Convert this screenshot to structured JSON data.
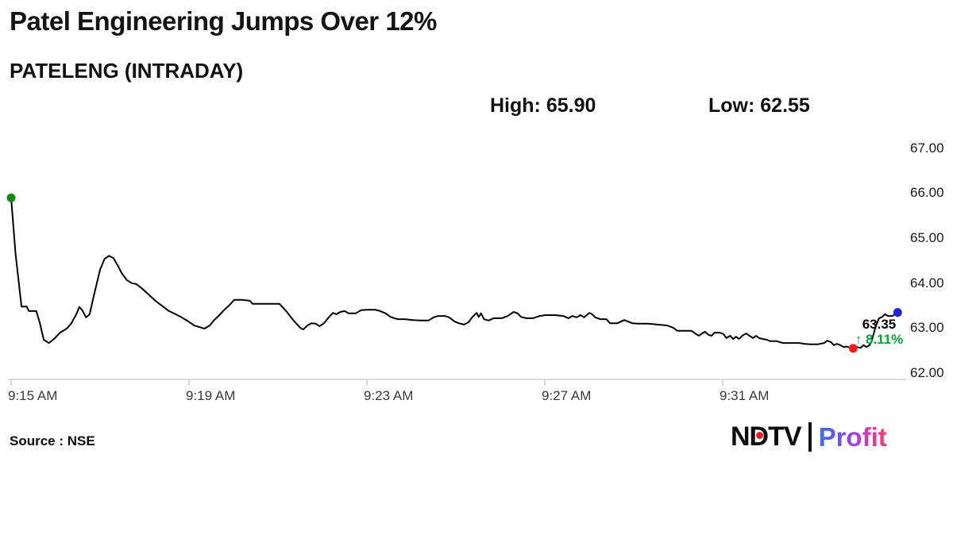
{
  "page": {
    "background": "#ffffff"
  },
  "header": {
    "title": "Patel Engineering Jumps Over 12%",
    "subtitle": "PATELENG (INTRADAY)",
    "high": "High: 65.90",
    "low": "Low: 62.55"
  },
  "footer": {
    "source": "Source : NSE",
    "logo_ndtv": "NDTV",
    "logo_profit": "Profit",
    "logo_dot_color": "#e31e24",
    "logo_bar_color": "#111111"
  },
  "chart_data": {
    "type": "line",
    "symbol": "PATELENG",
    "title": "PATELENG intraday price",
    "grid": false,
    "line_color": "#000000",
    "axis_color": "#cfcfcf",
    "x_axis": {
      "unit": "seconds since 9:15 AM",
      "tick_labels": [
        "9:15 AM",
        "9:19 AM",
        "9:23 AM",
        "9:27 AM",
        "9:31 AM"
      ],
      "tick_seconds": [
        0,
        240,
        480,
        720,
        960
      ],
      "range_seconds": [
        0,
        1205
      ]
    },
    "y_axis": {
      "side": "right",
      "tick_labels": [
        "67.00",
        "66.00",
        "65.00",
        "64.00",
        "63.00",
        "62.00"
      ],
      "tick_values": [
        67,
        66,
        65,
        64,
        63,
        62
      ],
      "range": [
        61.85,
        67.3
      ]
    },
    "high": 65.9,
    "low": 62.55,
    "last_price": 63.35,
    "change_percent": 8.11,
    "annotation": {
      "price": "63.35",
      "arrow": "↑",
      "change": "8.11%",
      "color": "#0aa23a"
    },
    "markers": [
      {
        "name": "open",
        "sec": 0,
        "price": 65.9,
        "color": "#128a12"
      },
      {
        "name": "low",
        "sec": 1136,
        "price": 62.55,
        "color": "#fc1d1d"
      },
      {
        "name": "last",
        "sec": 1196,
        "price": 63.35,
        "color": "#2222dc"
      }
    ],
    "points": [
      [
        0,
        65.9
      ],
      [
        6,
        64.65
      ],
      [
        14,
        63.48
      ],
      [
        21,
        63.48
      ],
      [
        24,
        63.38
      ],
      [
        34,
        63.38
      ],
      [
        39,
        63.1
      ],
      [
        44,
        62.74
      ],
      [
        51,
        62.67
      ],
      [
        58,
        62.76
      ],
      [
        66,
        62.9
      ],
      [
        75,
        62.99
      ],
      [
        81,
        63.1
      ],
      [
        88,
        63.31
      ],
      [
        92,
        63.47
      ],
      [
        96,
        63.4
      ],
      [
        101,
        63.24
      ],
      [
        106,
        63.31
      ],
      [
        111,
        63.68
      ],
      [
        120,
        64.3
      ],
      [
        126,
        64.54
      ],
      [
        132,
        64.61
      ],
      [
        138,
        64.56
      ],
      [
        144,
        64.39
      ],
      [
        149,
        64.23
      ],
      [
        156,
        64.07
      ],
      [
        163,
        64.0
      ],
      [
        169,
        63.98
      ],
      [
        176,
        63.89
      ],
      [
        182,
        63.8
      ],
      [
        188,
        63.71
      ],
      [
        196,
        63.59
      ],
      [
        205,
        63.48
      ],
      [
        213,
        63.38
      ],
      [
        222,
        63.31
      ],
      [
        230,
        63.24
      ],
      [
        239,
        63.15
      ],
      [
        247,
        63.06
      ],
      [
        255,
        63.02
      ],
      [
        261,
        62.99
      ],
      [
        268,
        63.06
      ],
      [
        274,
        63.18
      ],
      [
        281,
        63.29
      ],
      [
        287,
        63.4
      ],
      [
        295,
        63.52
      ],
      [
        301,
        63.63
      ],
      [
        312,
        63.63
      ],
      [
        322,
        63.61
      ],
      [
        326,
        63.54
      ],
      [
        344,
        63.54
      ],
      [
        362,
        63.54
      ],
      [
        371,
        63.38
      ],
      [
        381,
        63.17
      ],
      [
        390,
        63.01
      ],
      [
        394,
        62.97
      ],
      [
        400,
        63.06
      ],
      [
        405,
        63.11
      ],
      [
        411,
        63.1
      ],
      [
        416,
        63.04
      ],
      [
        422,
        63.11
      ],
      [
        429,
        63.25
      ],
      [
        434,
        63.34
      ],
      [
        439,
        63.31
      ],
      [
        444,
        63.36
      ],
      [
        450,
        63.38
      ],
      [
        455,
        63.33
      ],
      [
        465,
        63.33
      ],
      [
        472,
        63.4
      ],
      [
        481,
        63.41
      ],
      [
        491,
        63.41
      ],
      [
        498,
        63.38
      ],
      [
        505,
        63.33
      ],
      [
        512,
        63.25
      ],
      [
        521,
        63.2
      ],
      [
        531,
        63.2
      ],
      [
        542,
        63.18
      ],
      [
        553,
        63.17
      ],
      [
        563,
        63.17
      ],
      [
        570,
        63.24
      ],
      [
        576,
        63.27
      ],
      [
        585,
        63.27
      ],
      [
        591,
        63.24
      ],
      [
        598,
        63.15
      ],
      [
        604,
        63.11
      ],
      [
        611,
        63.08
      ],
      [
        617,
        63.13
      ],
      [
        622,
        63.24
      ],
      [
        628,
        63.34
      ],
      [
        631,
        63.25
      ],
      [
        634,
        63.33
      ],
      [
        638,
        63.2
      ],
      [
        644,
        63.17
      ],
      [
        651,
        63.22
      ],
      [
        662,
        63.22
      ],
      [
        670,
        63.27
      ],
      [
        678,
        63.36
      ],
      [
        683,
        63.33
      ],
      [
        688,
        63.25
      ],
      [
        695,
        63.22
      ],
      [
        704,
        63.22
      ],
      [
        713,
        63.27
      ],
      [
        721,
        63.29
      ],
      [
        734,
        63.29
      ],
      [
        745,
        63.27
      ],
      [
        752,
        63.22
      ],
      [
        757,
        63.27
      ],
      [
        763,
        63.24
      ],
      [
        768,
        63.29
      ],
      [
        773,
        63.24
      ],
      [
        780,
        63.34
      ],
      [
        784,
        63.31
      ],
      [
        788,
        63.24
      ],
      [
        795,
        63.2
      ],
      [
        803,
        63.2
      ],
      [
        808,
        63.11
      ],
      [
        818,
        63.11
      ],
      [
        827,
        63.18
      ],
      [
        832,
        63.15
      ],
      [
        838,
        63.11
      ],
      [
        846,
        63.1
      ],
      [
        859,
        63.1
      ],
      [
        872,
        63.08
      ],
      [
        885,
        63.06
      ],
      [
        893,
        63.01
      ],
      [
        899,
        62.94
      ],
      [
        908,
        62.94
      ],
      [
        918,
        62.94
      ],
      [
        923,
        62.88
      ],
      [
        928,
        62.83
      ],
      [
        932,
        62.88
      ],
      [
        936,
        62.92
      ],
      [
        941,
        62.85
      ],
      [
        945,
        62.83
      ],
      [
        949,
        62.9
      ],
      [
        956,
        62.9
      ],
      [
        961,
        62.87
      ],
      [
        965,
        62.78
      ],
      [
        970,
        62.83
      ],
      [
        974,
        62.76
      ],
      [
        978,
        62.81
      ],
      [
        982,
        62.76
      ],
      [
        988,
        62.85
      ],
      [
        992,
        62.88
      ],
      [
        996,
        62.83
      ],
      [
        1001,
        62.78
      ],
      [
        1005,
        62.83
      ],
      [
        1009,
        62.78
      ],
      [
        1014,
        62.76
      ],
      [
        1020,
        62.74
      ],
      [
        1024,
        62.71
      ],
      [
        1033,
        62.71
      ],
      [
        1041,
        62.67
      ],
      [
        1052,
        62.67
      ],
      [
        1063,
        62.67
      ],
      [
        1071,
        62.65
      ],
      [
        1078,
        62.64
      ],
      [
        1088,
        62.64
      ],
      [
        1097,
        62.67
      ],
      [
        1101,
        62.72
      ],
      [
        1106,
        62.69
      ],
      [
        1110,
        62.62
      ],
      [
        1114,
        62.65
      ],
      [
        1119,
        62.62
      ],
      [
        1123,
        62.58
      ],
      [
        1127,
        62.59
      ],
      [
        1131,
        62.57
      ],
      [
        1136,
        62.55
      ],
      [
        1141,
        62.58
      ],
      [
        1146,
        62.56
      ],
      [
        1150,
        62.62
      ],
      [
        1154,
        62.58
      ],
      [
        1158,
        62.62
      ],
      [
        1161,
        62.71
      ],
      [
        1166,
        63.02
      ],
      [
        1171,
        63.22
      ],
      [
        1175,
        63.25
      ],
      [
        1179,
        63.31
      ],
      [
        1183,
        63.27
      ],
      [
        1189,
        63.27
      ],
      [
        1196,
        63.35
      ]
    ]
  }
}
